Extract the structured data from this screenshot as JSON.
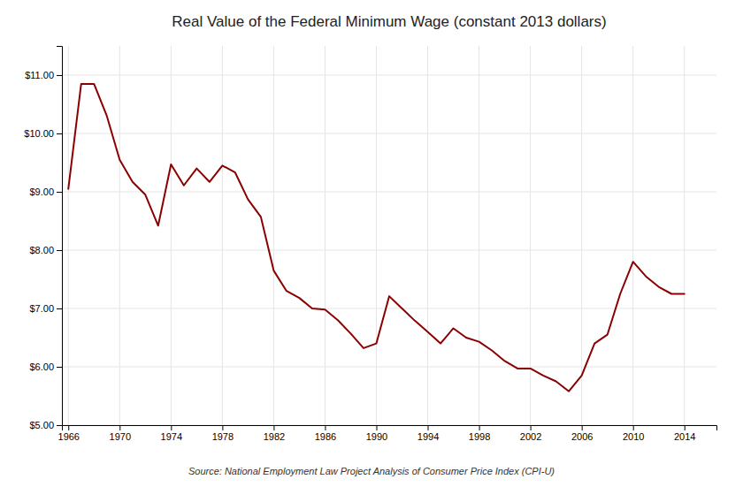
{
  "chart_data": {
    "type": "line",
    "title": "Real Value of the Federal Minimum Wage (constant 2013 dollars)",
    "annotations": [
      "Source: National Employment Law Project Analysis of Consumer Price Index (CPI-U)"
    ],
    "color": "#8B0000",
    "x": [
      1966,
      1967,
      1968,
      1969,
      1970,
      1971,
      1972,
      1973,
      1974,
      1975,
      1976,
      1977,
      1978,
      1979,
      1980,
      1981,
      1982,
      1983,
      1984,
      1985,
      1986,
      1987,
      1988,
      1989,
      1990,
      1991,
      1992,
      1993,
      1994,
      1995,
      1996,
      1997,
      1998,
      1999,
      2000,
      2001,
      2002,
      2003,
      2004,
      2005,
      2006,
      2007,
      2008,
      2009,
      2010,
      2011,
      2012,
      2013,
      2014
    ],
    "values": [
      9.05,
      10.85,
      10.85,
      10.3,
      9.55,
      9.17,
      8.95,
      8.42,
      9.47,
      9.11,
      9.4,
      9.17,
      9.45,
      9.33,
      8.87,
      8.57,
      7.65,
      7.3,
      7.18,
      7.0,
      6.98,
      6.8,
      6.57,
      6.32,
      6.4,
      7.21,
      7.0,
      6.79,
      6.6,
      6.4,
      6.66,
      6.5,
      6.43,
      6.28,
      6.1,
      5.97,
      5.97,
      5.85,
      5.75,
      5.58,
      5.85,
      6.4,
      6.55,
      7.25,
      7.8,
      7.55,
      7.37,
      7.25,
      7.25
    ],
    "xlim": [
      1965.5,
      2016.5
    ],
    "xticks": [
      1966,
      1970,
      1974,
      1978,
      1982,
      1986,
      1990,
      1994,
      1998,
      2002,
      2006,
      2010,
      2014
    ],
    "ylim": [
      5.0,
      11.5
    ],
    "yticks": [
      {
        "value": 5.0,
        "label": "$5.00"
      },
      {
        "value": 6.0,
        "label": "$6.00"
      },
      {
        "value": 7.0,
        "label": "$7.00"
      },
      {
        "value": 8.0,
        "label": "$8.00"
      },
      {
        "value": 9.0,
        "label": "$9.00"
      },
      {
        "value": 10.0,
        "label": "$10.00"
      },
      {
        "value": 11.0,
        "label": "$11.00"
      }
    ],
    "grid": true
  }
}
